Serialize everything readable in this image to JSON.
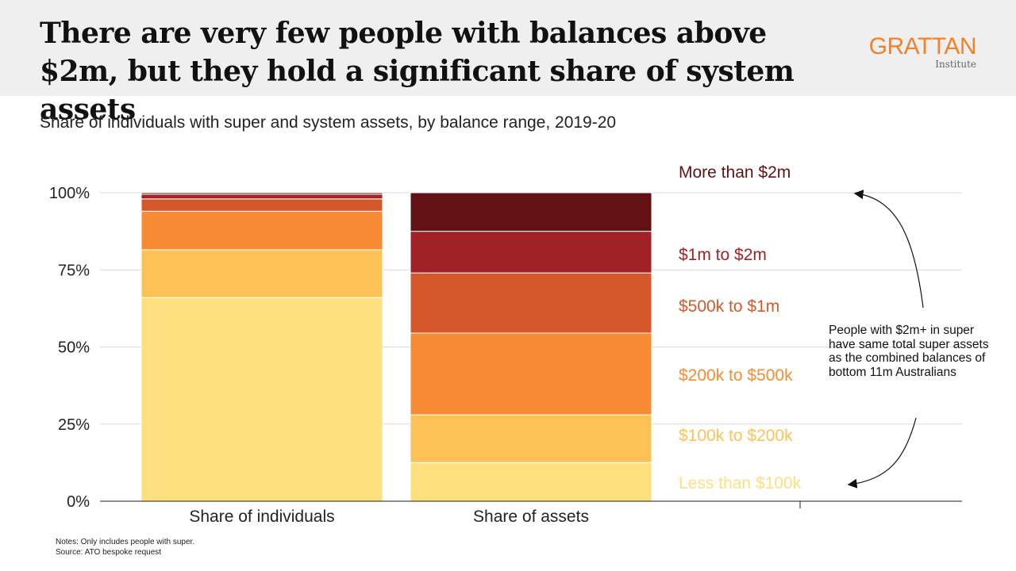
{
  "header": {
    "title": "There are very few people with balances above $2m, but they hold a significant share of system assets",
    "logo_word": "GRATTAN",
    "logo_sub": "Institute"
  },
  "subtitle": "Share of individuals with super and system assets, by balance range, 2019-20",
  "annotation": "People with $2m+ in super have same total super assets as the combined balances of bottom 11m Australians",
  "notes": {
    "line1": "Notes: Only includes people with super.",
    "line2": "Source: ATO bespoke request"
  },
  "chart_data": {
    "type": "bar",
    "stacked": true,
    "categories": [
      "Share of individuals",
      "Share of assets"
    ],
    "series": [
      {
        "name": "Less than $100k",
        "values": [
          66,
          12.5
        ],
        "color": "#fddf7e"
      },
      {
        "name": "$100k to $200k",
        "values": [
          15.5,
          15.5
        ],
        "color": "#fdc256"
      },
      {
        "name": "$200k to $500k",
        "values": [
          12.5,
          26.5
        ],
        "color": "#f68b33"
      },
      {
        "name": "$500k to $1m",
        "values": [
          4,
          19.5
        ],
        "color": "#d4582a"
      },
      {
        "name": "$1m to $2m",
        "values": [
          1.5,
          13.5
        ],
        "color": "#a02226"
      },
      {
        "name": "More than $2m",
        "values": [
          0.5,
          12.5
        ],
        "color": "#621214"
      }
    ],
    "y_ticks": [
      "0%",
      "25%",
      "50%",
      "75%",
      "100%"
    ],
    "ylim": [
      0,
      100
    ],
    "grid": true,
    "legend": "right, labels beside stacked segments"
  }
}
